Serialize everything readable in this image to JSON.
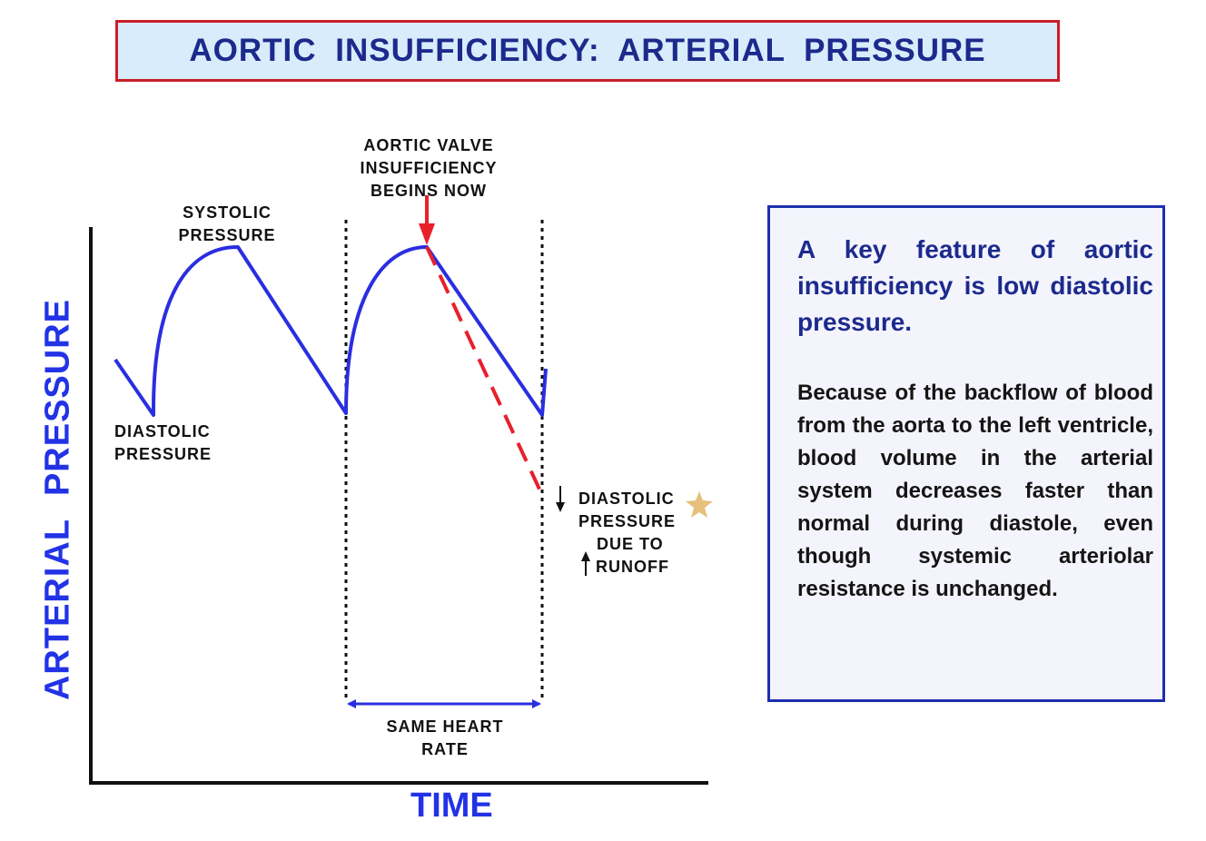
{
  "title": "AORTIC  INSUFFICIENCY:  ARTERIAL  PRESSURE",
  "axes": {
    "y_label": "ARTERIAL  PRESSURE",
    "x_label": "TIME"
  },
  "labels": {
    "systolic": [
      "SYSTOLIC",
      "PRESSURE"
    ],
    "diastolic": [
      "DIASTOLIC",
      "PRESSURE"
    ],
    "valve": [
      "AORTIC  VALVE",
      "INSUFFICIENCY",
      "BEGINS  NOW"
    ],
    "heart_rate": [
      "SAME  HEART",
      "RATE"
    ],
    "runoff": [
      "DIASTOLIC",
      "PRESSURE",
      "DUE  TO",
      "RUNOFF"
    ]
  },
  "info": {
    "headline": "A  key  feature of aortic insufficiency is low diastolic pressure.",
    "body": "Because of the backflow of blood from the aorta to the left ventricle, blood volume in the arterial system decreases faster than normal during diastole, even though systemic arteriolar resistance is unchanged."
  },
  "colors": {
    "title_border": "#c81e28",
    "title_bg": "#d8ecfb",
    "title_text": "#1c2a8c",
    "curve": "#2a2ee0",
    "dashed": "#e8202a",
    "axis_label": "#2233e6",
    "star": "#e6c07b"
  }
}
